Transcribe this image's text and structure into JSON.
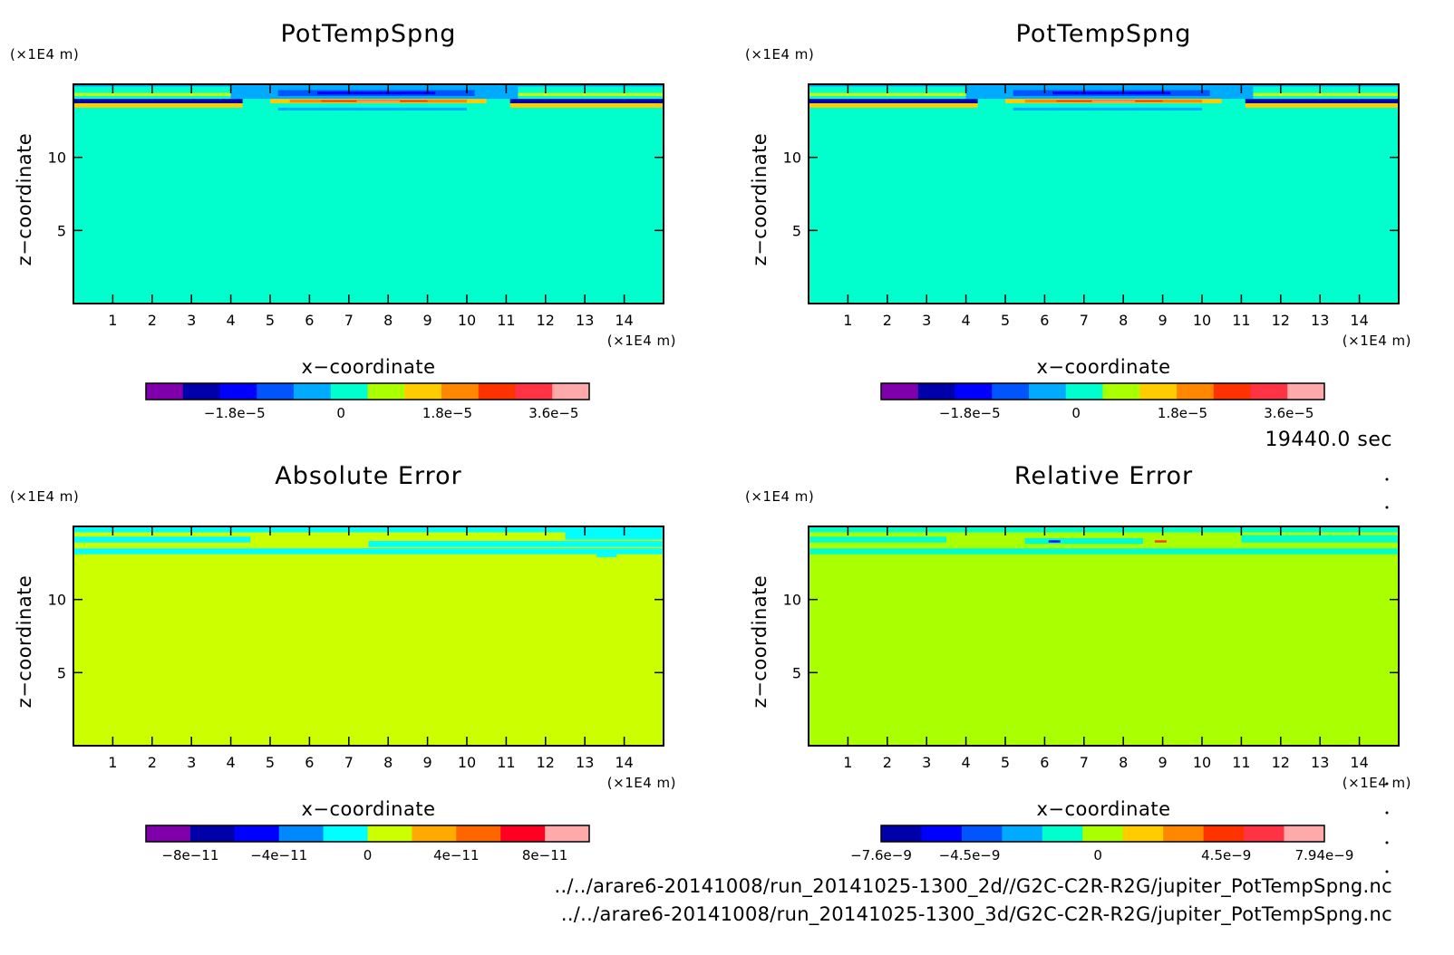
{
  "time_label": "19440.0 sec",
  "files": [
    "../../arare6-20141008/run_20141025-1300_2d//G2C-C2R-R2G/jupiter_PotTempSpng.nc",
    "../../arare6-20141008/run_20141025-1300_3d/G2C-C2R-R2G/jupiter_PotTempSpng.nc"
  ],
  "colors": {
    "field_background": "#00ffcc",
    "abs_error_background": "#ccff00",
    "rel_error_background": "#aaff00"
  },
  "chart_data": [
    {
      "type": "heatmap",
      "title": "PotTempSpng",
      "xlabel": "x−coordinate",
      "ylabel": "z−coordinate",
      "x_unit": "(×1E4 m)",
      "y_unit": "(×1E4 m)",
      "xlim": [
        0,
        15
      ],
      "ylim": [
        0,
        15
      ],
      "x_ticks": [
        1,
        2,
        3,
        4,
        5,
        6,
        7,
        8,
        9,
        10,
        11,
        12,
        13,
        14
      ],
      "y_ticks": [
        5,
        10
      ],
      "background": "#00ffcc",
      "colorbar": {
        "colors": [
          "#7f00aa",
          "#0000aa",
          "#0000ff",
          "#0055ff",
          "#00aaff",
          "#00ffcc",
          "#aaff00",
          "#ffcc00",
          "#ff8800",
          "#ff3300",
          "#ff3344",
          "#ffaaaa"
        ],
        "labels": [
          "−1.8e−5",
          "0",
          "1.8e−5",
          "3.6e−5"
        ],
        "label_values": [
          -1.8e-05,
          0,
          1.8e-05,
          3.6e-05
        ],
        "range": [
          -3.3e-05,
          4.2e-05
        ]
      },
      "bands": [
        {
          "x0": 0,
          "x1": 15,
          "z0": 14.85,
          "z1": 15,
          "color": "#00aaff"
        },
        {
          "x0": 0,
          "x1": 15,
          "z0": 14.2,
          "z1": 14.4,
          "color": "#ccff00"
        },
        {
          "x0": 0,
          "x1": 4.3,
          "z0": 13.7,
          "z1": 14.0,
          "color": "#0000aa"
        },
        {
          "x0": 11.1,
          "x1": 15,
          "z0": 13.7,
          "z1": 14.0,
          "color": "#0000aa"
        },
        {
          "x0": 0,
          "x1": 4.3,
          "z0": 13.4,
          "z1": 13.7,
          "color": "#ffcc00"
        },
        {
          "x0": 11.1,
          "x1": 15,
          "z0": 13.4,
          "z1": 13.7,
          "color": "#ffcc00"
        },
        {
          "x0": 4.0,
          "x1": 11.3,
          "z0": 14.0,
          "z1": 14.85,
          "color": "#00aaff"
        },
        {
          "x0": 5.2,
          "x1": 10.2,
          "z0": 14.2,
          "z1": 14.6,
          "color": "#0055ff"
        },
        {
          "x0": 6.2,
          "x1": 9.2,
          "z0": 14.3,
          "z1": 14.5,
          "color": "#0000ff"
        },
        {
          "x0": 5.0,
          "x1": 10.5,
          "z0": 13.7,
          "z1": 14.0,
          "color": "#ffcc00"
        },
        {
          "x0": 5.5,
          "x1": 10.0,
          "z0": 13.75,
          "z1": 13.95,
          "color": "#ff8800"
        },
        {
          "x0": 6.3,
          "x1": 9.0,
          "z0": 13.8,
          "z1": 13.9,
          "color": "#ff3300"
        },
        {
          "x0": 7.2,
          "x1": 8.3,
          "z0": 13.8,
          "z1": 13.88,
          "color": "#ffaaaa"
        },
        {
          "x0": 5.2,
          "x1": 10.0,
          "z0": 13.2,
          "z1": 13.4,
          "color": "#00aaff"
        }
      ]
    },
    {
      "type": "heatmap",
      "title": "PotTempSpng",
      "xlabel": "x−coordinate",
      "ylabel": "z−coordinate",
      "x_unit": "(×1E4 m)",
      "y_unit": "(×1E4 m)",
      "xlim": [
        0,
        15
      ],
      "ylim": [
        0,
        15
      ],
      "x_ticks": [
        1,
        2,
        3,
        4,
        5,
        6,
        7,
        8,
        9,
        10,
        11,
        12,
        13,
        14
      ],
      "y_ticks": [
        5,
        10
      ],
      "background": "#00ffcc",
      "colorbar": {
        "colors": [
          "#7f00aa",
          "#0000aa",
          "#0000ff",
          "#0055ff",
          "#00aaff",
          "#00ffcc",
          "#aaff00",
          "#ffcc00",
          "#ff8800",
          "#ff3300",
          "#ff3344",
          "#ffaaaa"
        ],
        "labels": [
          "−1.8e−5",
          "0",
          "1.8e−5",
          "3.6e−5"
        ],
        "label_values": [
          -1.8e-05,
          0,
          1.8e-05,
          3.6e-05
        ],
        "range": [
          -3.3e-05,
          4.2e-05
        ]
      },
      "bands": [
        {
          "x0": 0,
          "x1": 15,
          "z0": 14.85,
          "z1": 15,
          "color": "#00aaff"
        },
        {
          "x0": 0,
          "x1": 15,
          "z0": 14.2,
          "z1": 14.4,
          "color": "#ccff00"
        },
        {
          "x0": 0,
          "x1": 4.3,
          "z0": 13.7,
          "z1": 14.0,
          "color": "#0000aa"
        },
        {
          "x0": 11.1,
          "x1": 15,
          "z0": 13.7,
          "z1": 14.0,
          "color": "#0000aa"
        },
        {
          "x0": 0,
          "x1": 4.3,
          "z0": 13.4,
          "z1": 13.7,
          "color": "#ffcc00"
        },
        {
          "x0": 11.1,
          "x1": 15,
          "z0": 13.4,
          "z1": 13.7,
          "color": "#ffcc00"
        },
        {
          "x0": 4.0,
          "x1": 11.3,
          "z0": 14.0,
          "z1": 14.85,
          "color": "#00aaff"
        },
        {
          "x0": 5.2,
          "x1": 10.2,
          "z0": 14.2,
          "z1": 14.6,
          "color": "#0055ff"
        },
        {
          "x0": 6.2,
          "x1": 9.2,
          "z0": 14.3,
          "z1": 14.5,
          "color": "#0000ff"
        },
        {
          "x0": 5.0,
          "x1": 10.5,
          "z0": 13.7,
          "z1": 14.0,
          "color": "#ffcc00"
        },
        {
          "x0": 5.5,
          "x1": 10.0,
          "z0": 13.75,
          "z1": 13.95,
          "color": "#ff8800"
        },
        {
          "x0": 6.3,
          "x1": 9.0,
          "z0": 13.8,
          "z1": 13.9,
          "color": "#ff3300"
        },
        {
          "x0": 7.2,
          "x1": 8.3,
          "z0": 13.8,
          "z1": 13.88,
          "color": "#ffaaaa"
        },
        {
          "x0": 5.2,
          "x1": 10.0,
          "z0": 13.2,
          "z1": 13.4,
          "color": "#00aaff"
        }
      ]
    },
    {
      "type": "heatmap",
      "title": "Absolute Error",
      "xlabel": "x−coordinate",
      "ylabel": "z−coordinate",
      "x_unit": "(×1E4 m)",
      "y_unit": "(×1E4 m)",
      "xlim": [
        0,
        15
      ],
      "ylim": [
        0,
        15
      ],
      "x_ticks": [
        1,
        2,
        3,
        4,
        5,
        6,
        7,
        8,
        9,
        10,
        11,
        12,
        13,
        14
      ],
      "y_ticks": [
        5,
        10
      ],
      "background": "#ccff00",
      "colorbar": {
        "colors": [
          "#7f00aa",
          "#0000aa",
          "#0000ff",
          "#0088ff",
          "#00ffff",
          "#ccff00",
          "#ffaa00",
          "#ff6600",
          "#ff0022",
          "#ffaaaa"
        ],
        "labels": [
          "−8e−11",
          "−4e−11",
          "0",
          "4e−11",
          "8e−11"
        ],
        "label_values": [
          -8e-11,
          -4e-11,
          0,
          4e-11,
          8e-11
        ],
        "range": [
          -1e-10,
          1e-10
        ]
      },
      "bands": [
        {
          "x0": 0,
          "x1": 15,
          "z0": 13.1,
          "z1": 13.5,
          "color": "#00ffff"
        },
        {
          "x0": 0,
          "x1": 15,
          "z0": 14.6,
          "z1": 15,
          "color": "#00ffff"
        },
        {
          "x0": 0,
          "x1": 4.5,
          "z0": 13.9,
          "z1": 14.3,
          "color": "#00ffff"
        },
        {
          "x0": 7.5,
          "x1": 15,
          "z0": 13.6,
          "z1": 14.0,
          "color": "#00ffff"
        },
        {
          "x0": 12.5,
          "x1": 15,
          "z0": 14.1,
          "z1": 14.6,
          "color": "#00ffff"
        },
        {
          "x0": 13.3,
          "x1": 13.8,
          "z0": 12.9,
          "z1": 13.1,
          "color": "#00ffff"
        }
      ]
    },
    {
      "type": "heatmap",
      "title": "Relative Error",
      "xlabel": "x−coordinate",
      "ylabel": "z−coordinate",
      "x_unit": "(×1E4 m)",
      "y_unit": "(×1E4 m)",
      "xlim": [
        0,
        15
      ],
      "ylim": [
        0,
        15
      ],
      "x_ticks": [
        1,
        2,
        3,
        4,
        5,
        6,
        7,
        8,
        9,
        10,
        11,
        12,
        13,
        14
      ],
      "y_ticks": [
        5,
        10
      ],
      "background": "#aaff00",
      "colorbar": {
        "colors": [
          "#0000aa",
          "#0000ff",
          "#0055ff",
          "#00aaff",
          "#00ffcc",
          "#aaff00",
          "#ffcc00",
          "#ff8800",
          "#ff3300",
          "#ff3344",
          "#ffaaaa"
        ],
        "labels": [
          "−7.6e−9",
          "−4.5e−9",
          "0",
          "4.5e−9",
          "7.94e−9"
        ],
        "label_values": [
          -7.6e-09,
          -4.5e-09,
          0,
          4.5e-09,
          7.94e-09
        ],
        "range": [
          -7.6e-09,
          7.94e-09
        ]
      },
      "bands": [
        {
          "x0": 0,
          "x1": 15,
          "z0": 13.1,
          "z1": 13.5,
          "color": "#00ffcc"
        },
        {
          "x0": 0,
          "x1": 15,
          "z0": 14.6,
          "z1": 15,
          "color": "#00ffcc"
        },
        {
          "x0": 0,
          "x1": 3.5,
          "z0": 13.9,
          "z1": 14.3,
          "color": "#00ffcc"
        },
        {
          "x0": 5.5,
          "x1": 8.5,
          "z0": 13.8,
          "z1": 14.2,
          "color": "#00ffcc"
        },
        {
          "x0": 11.0,
          "x1": 15,
          "z0": 13.9,
          "z1": 14.4,
          "color": "#00ffcc"
        },
        {
          "x0": 6.1,
          "x1": 6.4,
          "z0": 13.9,
          "z1": 14.05,
          "color": "#0000ff"
        },
        {
          "x0": 8.8,
          "x1": 9.1,
          "z0": 13.9,
          "z1": 14.05,
          "color": "#ff3300"
        }
      ]
    }
  ]
}
